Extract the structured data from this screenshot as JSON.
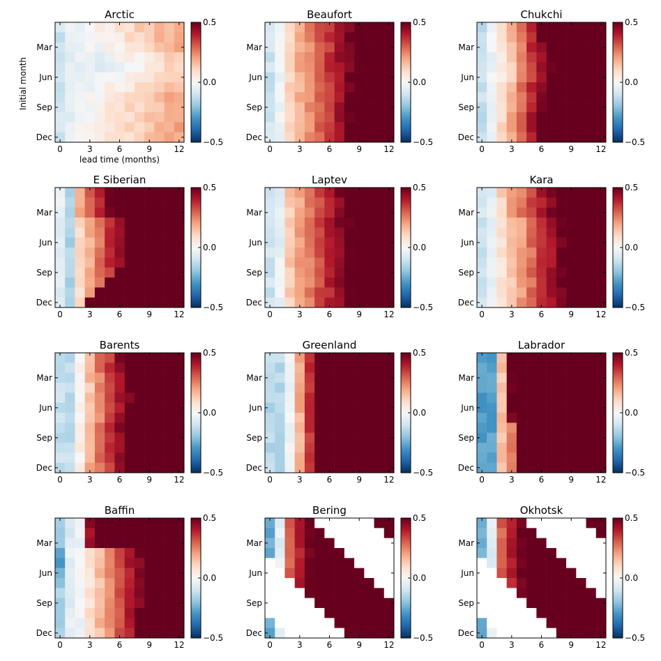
{
  "chart_data": {
    "type": "heatmap",
    "panels": [
      "Arctic",
      "Beaufort",
      "Chukchi",
      "E Siberian",
      "Laptev",
      "Kara",
      "Barents",
      "Greenland",
      "Labrador",
      "Baffin",
      "Bering",
      "Okhotsk"
    ],
    "x_ticks": [
      "0",
      "3",
      "6",
      "9",
      "12"
    ],
    "y_ticks": [
      "Mar",
      "Jun",
      "Sep",
      "Dec"
    ],
    "xlabel": "lead time (months)",
    "ylabel": "Initial month",
    "xlim": [
      -0.5,
      12.5
    ],
    "ylim": [
      0.5,
      12.5
    ],
    "clim": [
      -0.5,
      0.5
    ],
    "colorbar_ticks": [
      "0.5",
      "0.0",
      "−0.5"
    ],
    "colormap": [
      "#053061",
      "#2166ac",
      "#4393c3",
      "#92c5de",
      "#d1e5f0",
      "#f7f7f7",
      "#fddbc7",
      "#f4a582",
      "#d6604d",
      "#b2182b",
      "#67001f"
    ],
    "missing_color": "#ffffff",
    "layout": "4 rows x 3 columns"
  }
}
